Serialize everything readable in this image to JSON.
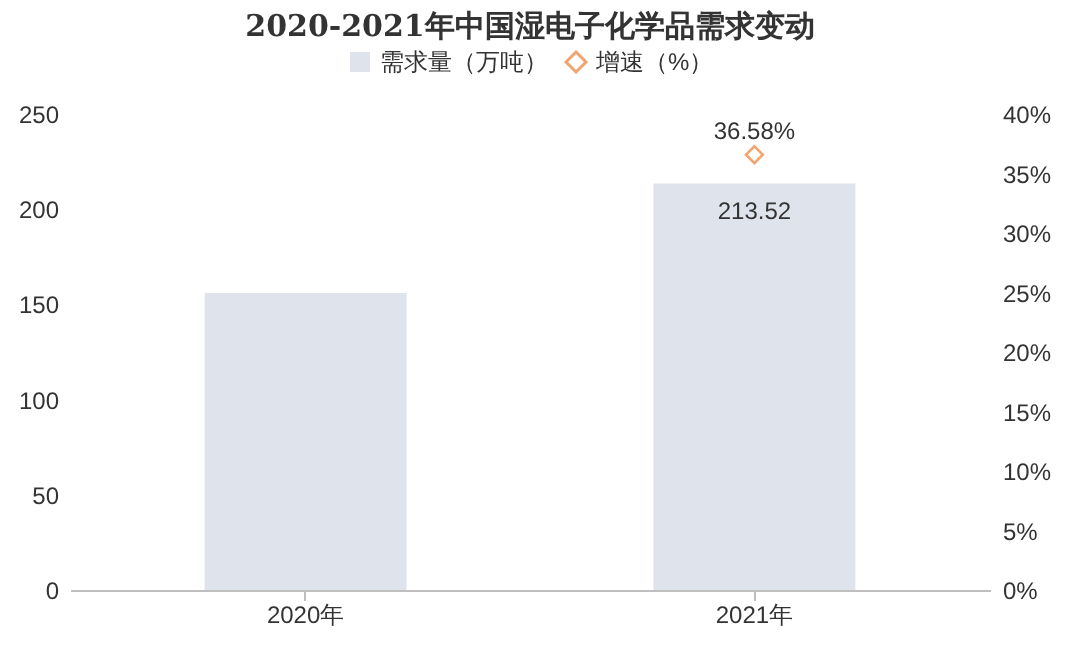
{
  "chart_data": {
    "type": "bar",
    "title": "2020-2021年中国湿电子化学品需求变动",
    "categories": [
      "2020年",
      "2021年"
    ],
    "series": [
      {
        "name": "需求量（万吨）",
        "color": "#dfe3ec",
        "values": [
          156,
          213.52
        ],
        "value_labels": [
          null,
          "213.52"
        ]
      },
      {
        "name": "增速（%）",
        "type": "scatter",
        "axis": "y2",
        "marker": "diamond",
        "color": "#ed7d31",
        "values": [
          null,
          36.58
        ],
        "value_labels": [
          null,
          "36.58%"
        ]
      }
    ],
    "ylim": [
      0,
      250
    ],
    "yticks": [
      0,
      50,
      100,
      150,
      200,
      250
    ],
    "y2lim": [
      0,
      40
    ],
    "y2ticks": [
      {
        "value": 0,
        "label": "0%"
      },
      {
        "value": 5,
        "label": "5%"
      },
      {
        "value": 10,
        "label": "10%"
      },
      {
        "value": 15,
        "label": "15%"
      },
      {
        "value": 20,
        "label": "20%"
      },
      {
        "value": 25,
        "label": "25%"
      },
      {
        "value": 30,
        "label": "30%"
      },
      {
        "value": 35,
        "label": "35%"
      },
      {
        "value": 40,
        "label": "40%"
      }
    ],
    "grid": false,
    "legend": "top"
  }
}
